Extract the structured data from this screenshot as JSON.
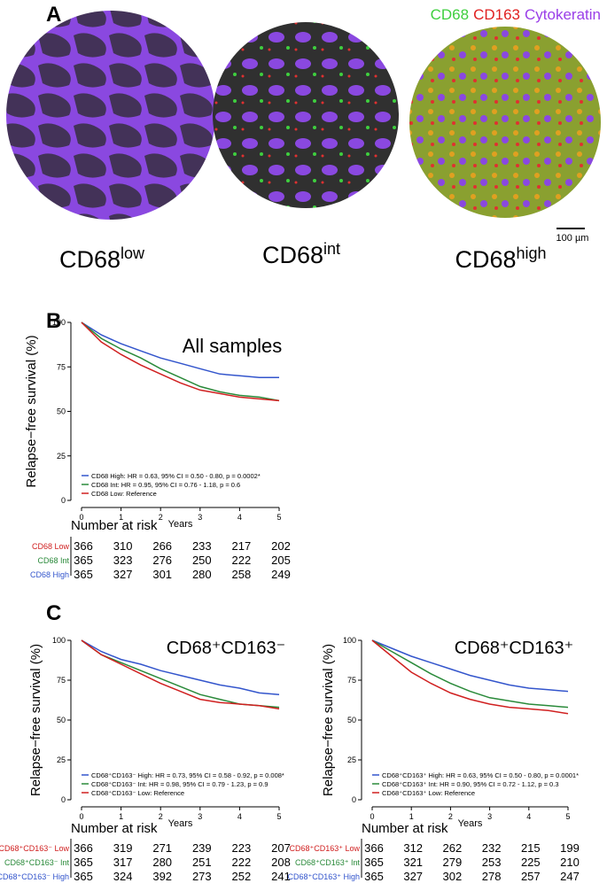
{
  "panel_a": {
    "label": "A",
    "stain_legend": [
      {
        "text": "CD68",
        "color": "#3ecf3e"
      },
      {
        "text": "CD163",
        "color": "#e02020"
      },
      {
        "text": "Cytokeratin",
        "color": "#9a3ee8"
      }
    ],
    "images": [
      {
        "base": "CD68",
        "sup": "low"
      },
      {
        "base": "CD68",
        "sup": "int"
      },
      {
        "base": "CD68",
        "sup": "high"
      }
    ],
    "scale_bar": "100 µm"
  },
  "chart_data": [
    {
      "type": "line",
      "panel": "B",
      "title": "All samples",
      "ylabel": "Relapse−free survival (%)",
      "xlabel": "Years",
      "x": [
        0,
        0.5,
        1,
        1.5,
        2,
        2.5,
        3,
        3.5,
        4,
        4.5,
        5
      ],
      "xlim": [
        0,
        5
      ],
      "xticks": [
        0,
        1,
        2,
        3,
        4,
        5
      ],
      "ylim": [
        0,
        100
      ],
      "yticks": [
        0,
        25,
        50,
        75,
        100
      ],
      "series": [
        {
          "name": "CD68 High: HR = 0.63, 95% CI = 0.50 - 0.80, p = 0.0002*",
          "color": "#3355cc",
          "values": [
            100,
            93,
            88,
            84,
            80,
            77,
            74,
            71,
            70,
            69,
            69
          ]
        },
        {
          "name": "CD68 Int: HR = 0.95, 95% CI = 0.76 - 1.18, p = 0.6",
          "color": "#2a8a3a",
          "values": [
            100,
            91,
            85,
            80,
            74,
            69,
            64,
            61,
            59,
            58,
            56
          ]
        },
        {
          "name": "CD68 Low: Reference",
          "color": "#d02020",
          "values": [
            100,
            89,
            82,
            76,
            71,
            66,
            62,
            60,
            58,
            57,
            56
          ]
        }
      ],
      "risk_table": {
        "title": "Number at risk",
        "rows": [
          {
            "label": "CD68 Low",
            "color": "#d02020",
            "values": [
              366,
              310,
              266,
              233,
              217,
              202
            ]
          },
          {
            "label": "CD68 Int",
            "color": "#2a8a3a",
            "values": [
              365,
              323,
              276,
              250,
              222,
              205
            ]
          },
          {
            "label": "CD68 High",
            "color": "#3355cc",
            "values": [
              365,
              327,
              301,
              280,
              258,
              249
            ]
          }
        ]
      }
    },
    {
      "type": "line",
      "panel": "C",
      "title": "CD68⁺CD163⁻",
      "ylabel": "Relapse−free survival (%)",
      "xlabel": "Years",
      "x": [
        0,
        0.5,
        1,
        1.5,
        2,
        2.5,
        3,
        3.5,
        4,
        4.5,
        5
      ],
      "xlim": [
        0,
        5
      ],
      "xticks": [
        0,
        1,
        2,
        3,
        4,
        5
      ],
      "ylim": [
        0,
        100
      ],
      "yticks": [
        0,
        25,
        50,
        75,
        100
      ],
      "series": [
        {
          "name": "CD68⁺CD163⁻ High: HR = 0.73, 95% CI = 0.58 - 0.92, p = 0.008*",
          "color": "#3355cc",
          "values": [
            100,
            93,
            88,
            85,
            81,
            78,
            75,
            72,
            70,
            67,
            66
          ]
        },
        {
          "name": "CD68⁺CD163⁻ Int: HR = 0.98, 95% CI = 0.79 - 1.23, p = 0.9",
          "color": "#2a8a3a",
          "values": [
            100,
            91,
            86,
            81,
            76,
            71,
            66,
            63,
            60,
            59,
            58
          ]
        },
        {
          "name": "CD68⁺CD163⁻ Low: Reference",
          "color": "#d02020",
          "values": [
            100,
            91,
            85,
            79,
            73,
            68,
            63,
            61,
            60,
            59,
            57
          ]
        }
      ],
      "risk_table": {
        "title": "Number at risk",
        "rows": [
          {
            "label": "CD68⁺CD163⁻ Low",
            "color": "#d02020",
            "values": [
              366,
              319,
              271,
              239,
              223,
              207
            ]
          },
          {
            "label": "CD68⁺CD163⁻ Int",
            "color": "#2a8a3a",
            "values": [
              365,
              317,
              280,
              251,
              222,
              208
            ]
          },
          {
            "label": "CD68⁺CD163⁻ High",
            "color": "#3355cc",
            "values": [
              365,
              324,
              392,
              273,
              252,
              241
            ]
          }
        ]
      }
    },
    {
      "type": "line",
      "title": "CD68⁺CD163⁺",
      "ylabel": "Relapse−free survival (%)",
      "xlabel": "Years",
      "x": [
        0,
        0.5,
        1,
        1.5,
        2,
        2.5,
        3,
        3.5,
        4,
        4.5,
        5
      ],
      "xlim": [
        0,
        5
      ],
      "xticks": [
        0,
        1,
        2,
        3,
        4,
        5
      ],
      "ylim": [
        0,
        100
      ],
      "yticks": [
        0,
        25,
        50,
        75,
        100
      ],
      "series": [
        {
          "name": "CD68⁺CD163⁺ High: HR = 0.63, 95% CI = 0.50 - 0.80, p = 0.0001*",
          "color": "#3355cc",
          "values": [
            100,
            95,
            90,
            86,
            82,
            78,
            75,
            72,
            70,
            69,
            68
          ]
        },
        {
          "name": "CD68⁺CD163⁺ Int: HR = 0.90, 95% CI = 0.72 - 1.12, p = 0.3",
          "color": "#2a8a3a",
          "values": [
            100,
            93,
            86,
            79,
            73,
            68,
            64,
            62,
            60,
            59,
            58
          ]
        },
        {
          "name": "CD68⁺CD163⁺ Low: Reference",
          "color": "#d02020",
          "values": [
            100,
            90,
            80,
            73,
            67,
            63,
            60,
            58,
            57,
            56,
            54
          ]
        }
      ],
      "risk_table": {
        "title": "Number at risk",
        "rows": [
          {
            "label": "CD68⁺CD163⁺ Low",
            "color": "#d02020",
            "values": [
              366,
              312,
              262,
              232,
              215,
              199
            ]
          },
          {
            "label": "CD68⁺CD163⁺ Int",
            "color": "#2a8a3a",
            "values": [
              365,
              321,
              279,
              253,
              225,
              210
            ]
          },
          {
            "label": "CD68⁺CD163⁺ High",
            "color": "#3355cc",
            "values": [
              365,
              327,
              302,
              278,
              257,
              247
            ]
          }
        ]
      }
    }
  ]
}
